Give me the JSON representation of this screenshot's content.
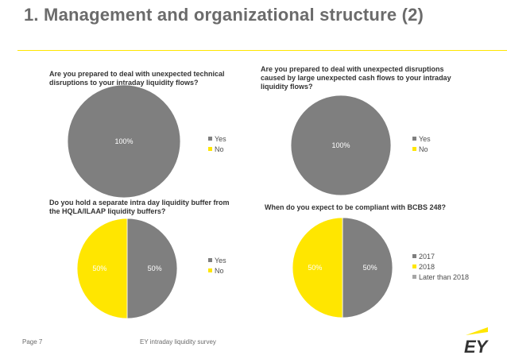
{
  "slide": {
    "title": "1. Management and organizational structure (2)"
  },
  "footer": {
    "page": "Page 7",
    "survey": "EY intraday liquidity survey"
  },
  "colors": {
    "grey": "#7f7f7f",
    "yellow": "#ffe600",
    "light_grey": "#a6a6a6"
  },
  "chart_data": [
    {
      "type": "pie",
      "title": "Are you prepared to deal with unexpected technical disruptions to your intraday liquidity flows?",
      "categories": [
        "Yes",
        "No"
      ],
      "values": [
        100,
        0
      ],
      "data_labels": [
        "100%",
        ""
      ],
      "legend": "right"
    },
    {
      "type": "pie",
      "title": "Are you prepared to deal with unexpected disruptions caused by large unexpected cash flows to your intraday liquidity flows?",
      "categories": [
        "Yes",
        "No"
      ],
      "values": [
        100,
        0
      ],
      "data_labels": [
        "100%",
        ""
      ],
      "legend": "right"
    },
    {
      "type": "pie",
      "title": "Do you hold  a separate intra day liquidity buffer from the HQLA/ILAAP liquidity buffers?",
      "categories": [
        "Yes",
        "No"
      ],
      "values": [
        50,
        50
      ],
      "data_labels": [
        "50%",
        "50%"
      ],
      "legend": "right"
    },
    {
      "type": "pie",
      "title": "When do you expect to be compliant with BCBS 248?",
      "categories": [
        "2017",
        "2018",
        "Later than 2018"
      ],
      "values": [
        50,
        50,
        0
      ],
      "data_labels": [
        "50%",
        "50%",
        ""
      ],
      "legend": "right"
    }
  ]
}
